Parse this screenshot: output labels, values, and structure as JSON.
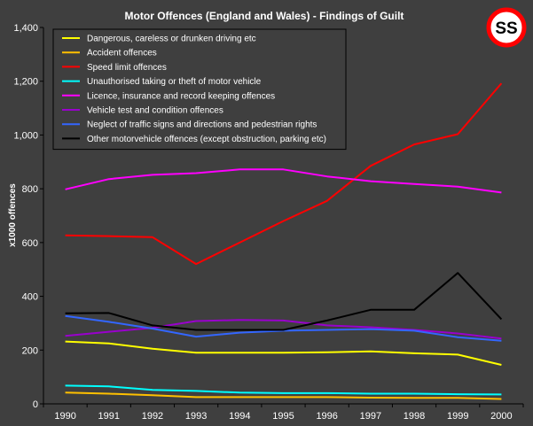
{
  "chart_data": {
    "type": "line",
    "title": "Motor Offences (England and Wales) - Findings of Guilt",
    "ylabel": "x1000 offences",
    "xlabel": "",
    "ylim": [
      0,
      1400
    ],
    "y_ticks": [
      "0",
      "200",
      "400",
      "600",
      "800",
      "1,000",
      "1,200",
      "1,400"
    ],
    "y_tick_values": [
      0,
      200,
      400,
      600,
      800,
      1000,
      1200,
      1400
    ],
    "categories": [
      "1990",
      "1991",
      "1992",
      "1993",
      "1994",
      "1995",
      "1996",
      "1997",
      "1998",
      "1999",
      "2000"
    ],
    "grid": false,
    "legend_position": "top-left",
    "logo_text": "SS",
    "series": [
      {
        "name": "Dangerous, careless or drunken driving etc",
        "color": "#ffff00",
        "values": [
          232,
          225,
          205,
          190,
          190,
          190,
          192,
          195,
          188,
          183,
          145
        ]
      },
      {
        "name": "Accident offences",
        "color": "#ffc000",
        "values": [
          42,
          38,
          32,
          25,
          25,
          25,
          25,
          23,
          22,
          22,
          18
        ]
      },
      {
        "name": "Speed limit offences",
        "color": "#ff0000",
        "values": [
          627,
          624,
          620,
          520,
          600,
          680,
          755,
          885,
          965,
          1003,
          1192
        ]
      },
      {
        "name": "Unauthorised taking or theft of motor vehicle",
        "color": "#00ffff",
        "values": [
          68,
          65,
          52,
          48,
          42,
          40,
          40,
          38,
          38,
          36,
          35
        ]
      },
      {
        "name": "Licence, insurance and record keeping offences",
        "color": "#ff00ff",
        "values": [
          798,
          836,
          852,
          858,
          872,
          872,
          846,
          828,
          818,
          808,
          786
        ]
      },
      {
        "name": "Vehicle test and condition offences",
        "color": "#9900cc",
        "values": [
          253,
          268,
          283,
          308,
          312,
          310,
          292,
          285,
          275,
          262,
          243
        ]
      },
      {
        "name": "Neglect of traffic signs and directions and pedestrian rights",
        "color": "#3366ff",
        "values": [
          327,
          305,
          280,
          250,
          265,
          272,
          275,
          278,
          272,
          248,
          235
        ]
      },
      {
        "name": "Other motorvehicle offences (except obstruction, parking etc)",
        "color": "#000000",
        "values": [
          337,
          338,
          292,
          275,
          275,
          275,
          310,
          350,
          350,
          487,
          315
        ]
      }
    ]
  }
}
